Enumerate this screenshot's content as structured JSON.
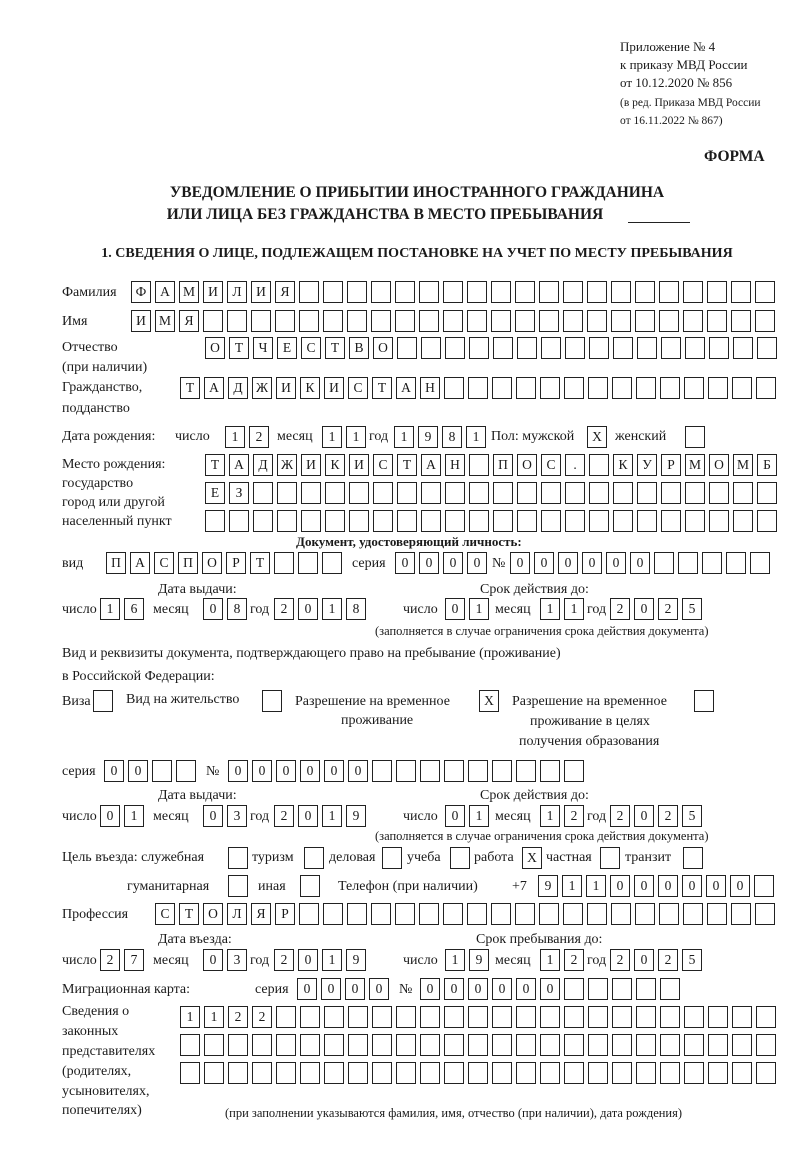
{
  "header": {
    "appendix": "Приложение № 4",
    "order": "к приказу МВД России",
    "order_date": "от 10.12.2020 № 856",
    "edition_1": "(в ред. Приказа МВД России",
    "edition_2": "от 16.11.2022 № 867)",
    "forma": "ФОРМА"
  },
  "title": {
    "line1": "УВЕДОМЛЕНИЕ О ПРИБЫТИИ ИНОСТРАННОГО ГРАЖДАНИНА",
    "line2": "ИЛИ ЛИЦА БЕЗ ГРАЖДАНСТВА В МЕСТО ПРЕБЫВАНИЯ"
  },
  "section1": {
    "title": "1. СВЕДЕНИЯ О ЛИЦЕ, ПОДЛЕЖАЩЕМ ПОСТАНОВКЕ НА УЧЕТ ПО МЕСТУ ПРЕБЫВАНИЯ",
    "surname": {
      "label": "Фамилия",
      "cells": [
        "Ф",
        "А",
        "М",
        "И",
        "Л",
        "И",
        "Я",
        "",
        "",
        "",
        "",
        "",
        "",
        "",
        "",
        "",
        "",
        "",
        "",
        "",
        "",
        "",
        "",
        "",
        "",
        "",
        ""
      ]
    },
    "name": {
      "label": "Имя",
      "cells": [
        "И",
        "М",
        "Я",
        "",
        "",
        "",
        "",
        "",
        "",
        "",
        "",
        "",
        "",
        "",
        "",
        "",
        "",
        "",
        "",
        "",
        "",
        "",
        "",
        "",
        "",
        "",
        ""
      ]
    },
    "patronymic": {
      "label": "Отчество",
      "label2": "(при наличии)",
      "cells": [
        "О",
        "Т",
        "Ч",
        "Е",
        "С",
        "Т",
        "В",
        "О",
        "",
        "",
        "",
        "",
        "",
        "",
        "",
        "",
        "",
        "",
        "",
        "",
        "",
        "",
        "",
        ""
      ]
    },
    "citizenship": {
      "label": "Гражданство,",
      "label2": "подданство",
      "cells": [
        "Т",
        "А",
        "Д",
        "Ж",
        "И",
        "К",
        "И",
        "С",
        "Т",
        "А",
        "Н",
        "",
        "",
        "",
        "",
        "",
        "",
        "",
        "",
        "",
        "",
        "",
        "",
        "",
        ""
      ]
    },
    "birth": {
      "label": "Дата рождения:",
      "day_label": "число",
      "month_label": "месяц",
      "year_label": "год",
      "day": [
        "1",
        "2"
      ],
      "month": [
        "1",
        "1"
      ],
      "year": [
        "1",
        "9",
        "8",
        "1"
      ],
      "sex_label": "Пол: мужской",
      "male": [
        "X"
      ],
      "female_label": "женский",
      "female": [
        ""
      ]
    },
    "birthplace": {
      "label1": "Место рождения:",
      "label2": "государство",
      "label3": "город или другой",
      "label4": "населенный пункт",
      "row1": [
        "Т",
        "А",
        "Д",
        "Ж",
        "И",
        "К",
        "И",
        "С",
        "Т",
        "А",
        "Н",
        "",
        "П",
        "О",
        "С",
        ".",
        "",
        "К",
        "У",
        "Р",
        "М",
        "О",
        "М",
        "Б"
      ],
      "row2": [
        "Е",
        "З",
        "",
        "",
        "",
        "",
        "",
        "",
        "",
        "",
        "",
        "",
        "",
        "",
        "",
        "",
        "",
        "",
        "",
        "",
        "",
        "",
        "",
        ""
      ],
      "row3": [
        "",
        "",
        "",
        "",
        "",
        "",
        "",
        "",
        "",
        "",
        "",
        "",
        "",
        "",
        "",
        "",
        "",
        "",
        "",
        "",
        "",
        "",
        "",
        ""
      ]
    },
    "id_doc": {
      "heading": "Документ, удостоверяющий личность:",
      "type_label": "вид",
      "type": [
        "П",
        "А",
        "С",
        "П",
        "О",
        "Р",
        "Т",
        "",
        "",
        ""
      ],
      "series_label": "серия",
      "series": [
        "0",
        "0",
        "0",
        "0"
      ],
      "number_label": "№",
      "number": [
        "0",
        "0",
        "0",
        "0",
        "0",
        "0",
        "",
        "",
        "",
        "",
        ""
      ],
      "issue_label": "Дата выдачи:",
      "expiry_label": "Срок действия до:",
      "day_label": "число",
      "month_label": "месяц",
      "year_label": "год",
      "issue_day": [
        "1",
        "6"
      ],
      "issue_month": [
        "0",
        "8"
      ],
      "issue_year": [
        "2",
        "0",
        "1",
        "8"
      ],
      "expiry_day": [
        "0",
        "1"
      ],
      "expiry_month": [
        "1",
        "1"
      ],
      "expiry_year": [
        "2",
        "0",
        "2",
        "5"
      ],
      "note": "(заполняется в случае ограничения срока действия документа)"
    },
    "stay_doc": {
      "heading1": "Вид и реквизиты документа, подтверждающего право на пребывание (проживание)",
      "heading2": "в Российской Федерации:",
      "visa_label": "Виза",
      "visa": [
        ""
      ],
      "residence_label": "Вид на жительство",
      "residence": [
        ""
      ],
      "temp_label1": "Разрешение на временное",
      "temp_label2": "проживание",
      "temp": [
        "X"
      ],
      "edu_label1": "Разрешение на временное",
      "edu_label2": "проживание в целях",
      "edu_label3": "получения образования",
      "edu": [
        ""
      ],
      "series_label": "серия",
      "series": [
        "0",
        "0",
        "",
        ""
      ],
      "number_label": "№",
      "number": [
        "0",
        "0",
        "0",
        "0",
        "0",
        "0",
        "",
        "",
        "",
        "",
        "",
        "",
        "",
        "",
        ""
      ],
      "issue_label": "Дата выдачи:",
      "expiry_label": "Срок действия до:",
      "day_label": "число",
      "month_label": "месяц",
      "year_label": "год",
      "issue_day": [
        "0",
        "1"
      ],
      "issue_month": [
        "0",
        "3"
      ],
      "issue_year": [
        "2",
        "0",
        "1",
        "9"
      ],
      "expiry_day": [
        "0",
        "1"
      ],
      "expiry_month": [
        "1",
        "2"
      ],
      "expiry_year": [
        "2",
        "0",
        "2",
        "5"
      ],
      "note": "(заполняется в случае ограничения срока действия документа)"
    },
    "purpose": {
      "label": "Цель въезда: служебная",
      "service": [
        ""
      ],
      "tourism_label": "туризм",
      "tourism": [
        ""
      ],
      "business_label": "деловая",
      "business": [
        ""
      ],
      "study_label": "учеба",
      "study": [
        ""
      ],
      "work_label": "работа",
      "work": [
        "X"
      ],
      "private_label": "частная",
      "private": [
        ""
      ],
      "transit_label": "транзит",
      "transit": [
        ""
      ],
      "humanitarian_label": "гуманитарная",
      "humanitarian": [
        ""
      ],
      "other_label": "иная",
      "other": [
        ""
      ]
    },
    "phone": {
      "label": "Телефон (при наличии)",
      "prefix": "+7",
      "cells": [
        "9",
        "1",
        "1",
        "0",
        "0",
        "0",
        "0",
        "0",
        "0",
        ""
      ]
    },
    "profession": {
      "label": "Профессия",
      "cells": [
        "С",
        "Т",
        "О",
        "Л",
        "Я",
        "Р",
        "",
        "",
        "",
        "",
        "",
        "",
        "",
        "",
        "",
        "",
        "",
        "",
        "",
        "",
        "",
        "",
        "",
        "",
        "",
        ""
      ]
    },
    "entry": {
      "entry_label": "Дата въезда:",
      "stay_label": "Срок пребывания до:",
      "day_label": "число",
      "month_label": "месяц",
      "year_label": "год",
      "entry_day": [
        "2",
        "7"
      ],
      "entry_month": [
        "0",
        "3"
      ],
      "entry_year": [
        "2",
        "0",
        "1",
        "9"
      ],
      "stay_day": [
        "1",
        "9"
      ],
      "stay_month": [
        "1",
        "2"
      ],
      "stay_year": [
        "2",
        "0",
        "2",
        "5"
      ]
    },
    "migration_card": {
      "label": "Миграционная карта:",
      "series_label": "серия",
      "series": [
        "0",
        "0",
        "0",
        "0"
      ],
      "number_label": "№",
      "number": [
        "0",
        "0",
        "0",
        "0",
        "0",
        "0",
        "",
        "",
        "",
        "",
        ""
      ]
    },
    "legal_reps": {
      "label1": "Сведения о",
      "label2": "законных",
      "label3": "представителях",
      "label4": "(родителях,",
      "label5": "усыновителях,",
      "label6": "попечителях)",
      "row1": [
        "1",
        "1",
        "2",
        "2",
        "",
        "",
        "",
        "",
        "",
        "",
        "",
        "",
        "",
        "",
        "",
        "",
        "",
        "",
        "",
        "",
        "",
        "",
        "",
        "",
        ""
      ],
      "row2": [
        "",
        "",
        "",
        "",
        "",
        "",
        "",
        "",
        "",
        "",
        "",
        "",
        "",
        "",
        "",
        "",
        "",
        "",
        "",
        "",
        "",
        "",
        "",
        "",
        ""
      ],
      "row3": [
        "",
        "",
        "",
        "",
        "",
        "",
        "",
        "",
        "",
        "",
        "",
        "",
        "",
        "",
        "",
        "",
        "",
        "",
        "",
        "",
        "",
        "",
        "",
        "",
        ""
      ],
      "note": "(при заполнении указываются фамилия, имя, отчество (при наличии), дата рождения)"
    }
  }
}
